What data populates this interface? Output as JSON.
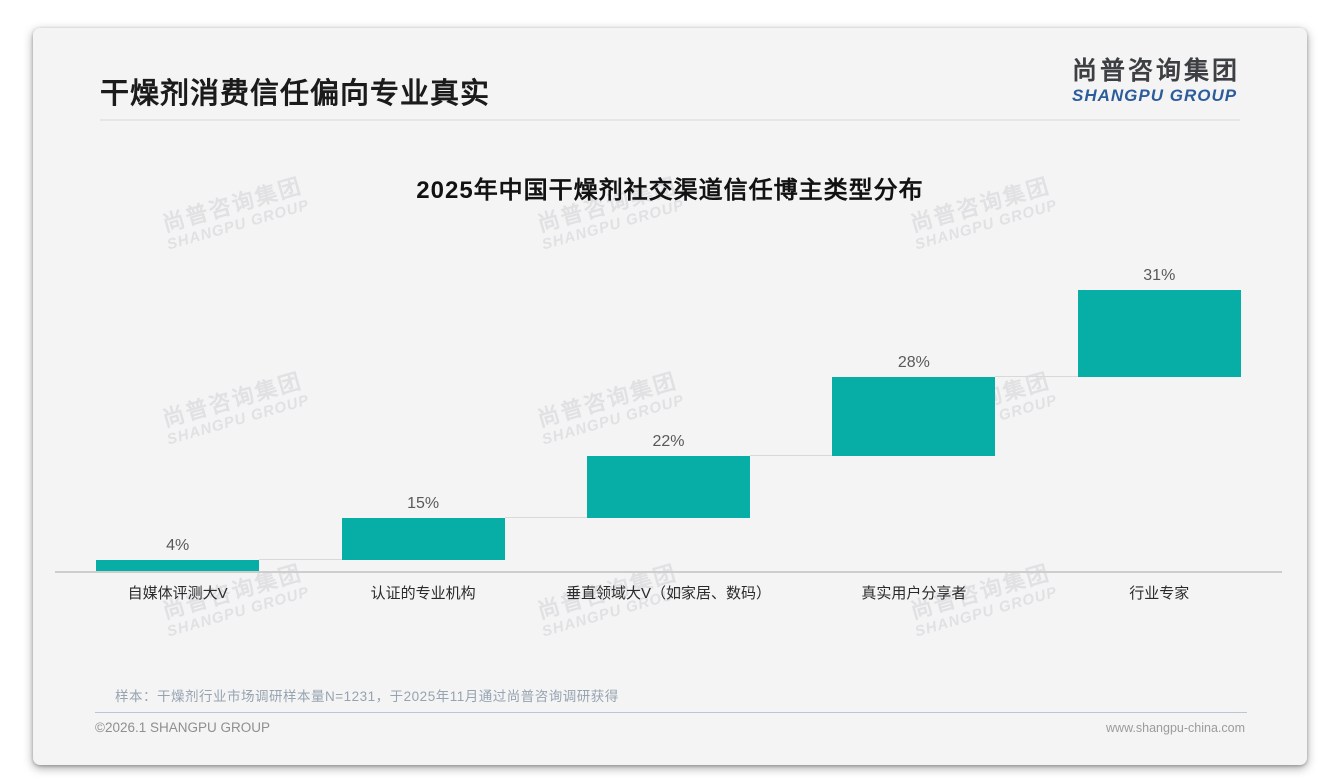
{
  "page": {
    "title": "干燥剂消费信任偏向专业真实",
    "logo": {
      "cn": "尚普咨询集团",
      "en": "SHANGPU GROUP"
    },
    "watermark": {
      "cn": "尚普咨询集团",
      "en": "SHANGPU GROUP"
    },
    "note": "样本：干燥剂行业市场调研样本量N=1231，于2025年11月通过尚普咨询调研获得",
    "footer": {
      "left": "©2026.1 SHANGPU GROUP",
      "right": "www.shangpu-china.com"
    }
  },
  "colors": {
    "accent_teal": "#07AEA6",
    "logo_blue": "#2D5C9B",
    "card_bg": "#F4F4F5",
    "connector_gray": "#D9D9D9",
    "axis_gray": "#CDCDCD"
  },
  "chart_data": {
    "type": "bar",
    "variant": "waterfall-cumulative-steps",
    "title": "2025年中国干燥剂社交渠道信任博主类型分布",
    "categories": [
      "自媒体评测大V",
      "认证的专业机构",
      "垂直领域大V（如家居、数码）",
      "真实用户分享者",
      "行业专家"
    ],
    "values": [
      4,
      15,
      22,
      28,
      31
    ],
    "data_labels": [
      "4%",
      "15%",
      "22%",
      "28%",
      "31%"
    ],
    "cumulative_levels": [
      4,
      19,
      41,
      69,
      100
    ],
    "unit": "%",
    "ylim": [
      0,
      100
    ],
    "grid": "off",
    "legend": "none",
    "bar_color": "#07AEA6",
    "data_label_color": "#595959",
    "category_label_color": "#2B2B2B"
  }
}
